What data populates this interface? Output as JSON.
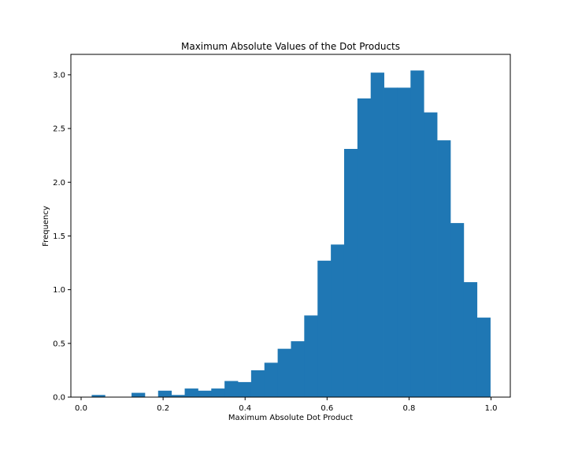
{
  "chart_data": {
    "type": "histogram",
    "title": "Maximum Absolute Values of the Dot Products",
    "xlabel": "Maximum Absolute Dot Product",
    "ylabel": "Frequency",
    "xlim": [
      -0.025,
      1.047
    ],
    "ylim": [
      0,
      3.19
    ],
    "xticks": [
      0.0,
      0.2,
      0.4,
      0.6,
      0.8,
      1.0
    ],
    "xtick_labels": [
      "0.0",
      "0.2",
      "0.4",
      "0.6",
      "0.8",
      "1.0"
    ],
    "yticks": [
      0.0,
      0.5,
      1.0,
      1.5,
      2.0,
      2.5,
      3.0
    ],
    "ytick_labels": [
      "0.0",
      "0.5",
      "1.0",
      "1.5",
      "2.0",
      "2.5",
      "3.0"
    ],
    "bar_color": "#1f77b4",
    "bins": [
      {
        "x0": 0.0258,
        "x1": 0.0582,
        "y": 0.02
      },
      {
        "x0": 0.0582,
        "x1": 0.0906,
        "y": 0.0
      },
      {
        "x0": 0.0906,
        "x1": 0.123,
        "y": 0.0
      },
      {
        "x0": 0.123,
        "x1": 0.1554,
        "y": 0.04
      },
      {
        "x0": 0.1554,
        "x1": 0.1878,
        "y": 0.0
      },
      {
        "x0": 0.1878,
        "x1": 0.2202,
        "y": 0.06
      },
      {
        "x0": 0.2202,
        "x1": 0.2527,
        "y": 0.02
      },
      {
        "x0": 0.2527,
        "x1": 0.2851,
        "y": 0.08
      },
      {
        "x0": 0.2851,
        "x1": 0.3175,
        "y": 0.06
      },
      {
        "x0": 0.3175,
        "x1": 0.3499,
        "y": 0.08
      },
      {
        "x0": 0.3499,
        "x1": 0.3823,
        "y": 0.15
      },
      {
        "x0": 0.3823,
        "x1": 0.4147,
        "y": 0.14
      },
      {
        "x0": 0.4147,
        "x1": 0.4471,
        "y": 0.25
      },
      {
        "x0": 0.4471,
        "x1": 0.4795,
        "y": 0.32
      },
      {
        "x0": 0.4795,
        "x1": 0.5119,
        "y": 0.45
      },
      {
        "x0": 0.5119,
        "x1": 0.5443,
        "y": 0.52
      },
      {
        "x0": 0.5443,
        "x1": 0.5768,
        "y": 0.76
      },
      {
        "x0": 0.5768,
        "x1": 0.6092,
        "y": 1.27
      },
      {
        "x0": 0.6092,
        "x1": 0.6416,
        "y": 1.42
      },
      {
        "x0": 0.6416,
        "x1": 0.674,
        "y": 2.31
      },
      {
        "x0": 0.674,
        "x1": 0.7064,
        "y": 2.78
      },
      {
        "x0": 0.7064,
        "x1": 0.7388,
        "y": 3.02
      },
      {
        "x0": 0.7388,
        "x1": 0.7712,
        "y": 2.88
      },
      {
        "x0": 0.7712,
        "x1": 0.8036,
        "y": 2.88
      },
      {
        "x0": 0.8036,
        "x1": 0.836,
        "y": 3.04
      },
      {
        "x0": 0.836,
        "x1": 0.8684,
        "y": 2.65
      },
      {
        "x0": 0.8684,
        "x1": 0.9009,
        "y": 2.39
      },
      {
        "x0": 0.9009,
        "x1": 0.9333,
        "y": 1.62
      },
      {
        "x0": 0.9333,
        "x1": 0.9657,
        "y": 1.07
      },
      {
        "x0": 0.9657,
        "x1": 0.9981,
        "y": 0.74
      }
    ]
  }
}
